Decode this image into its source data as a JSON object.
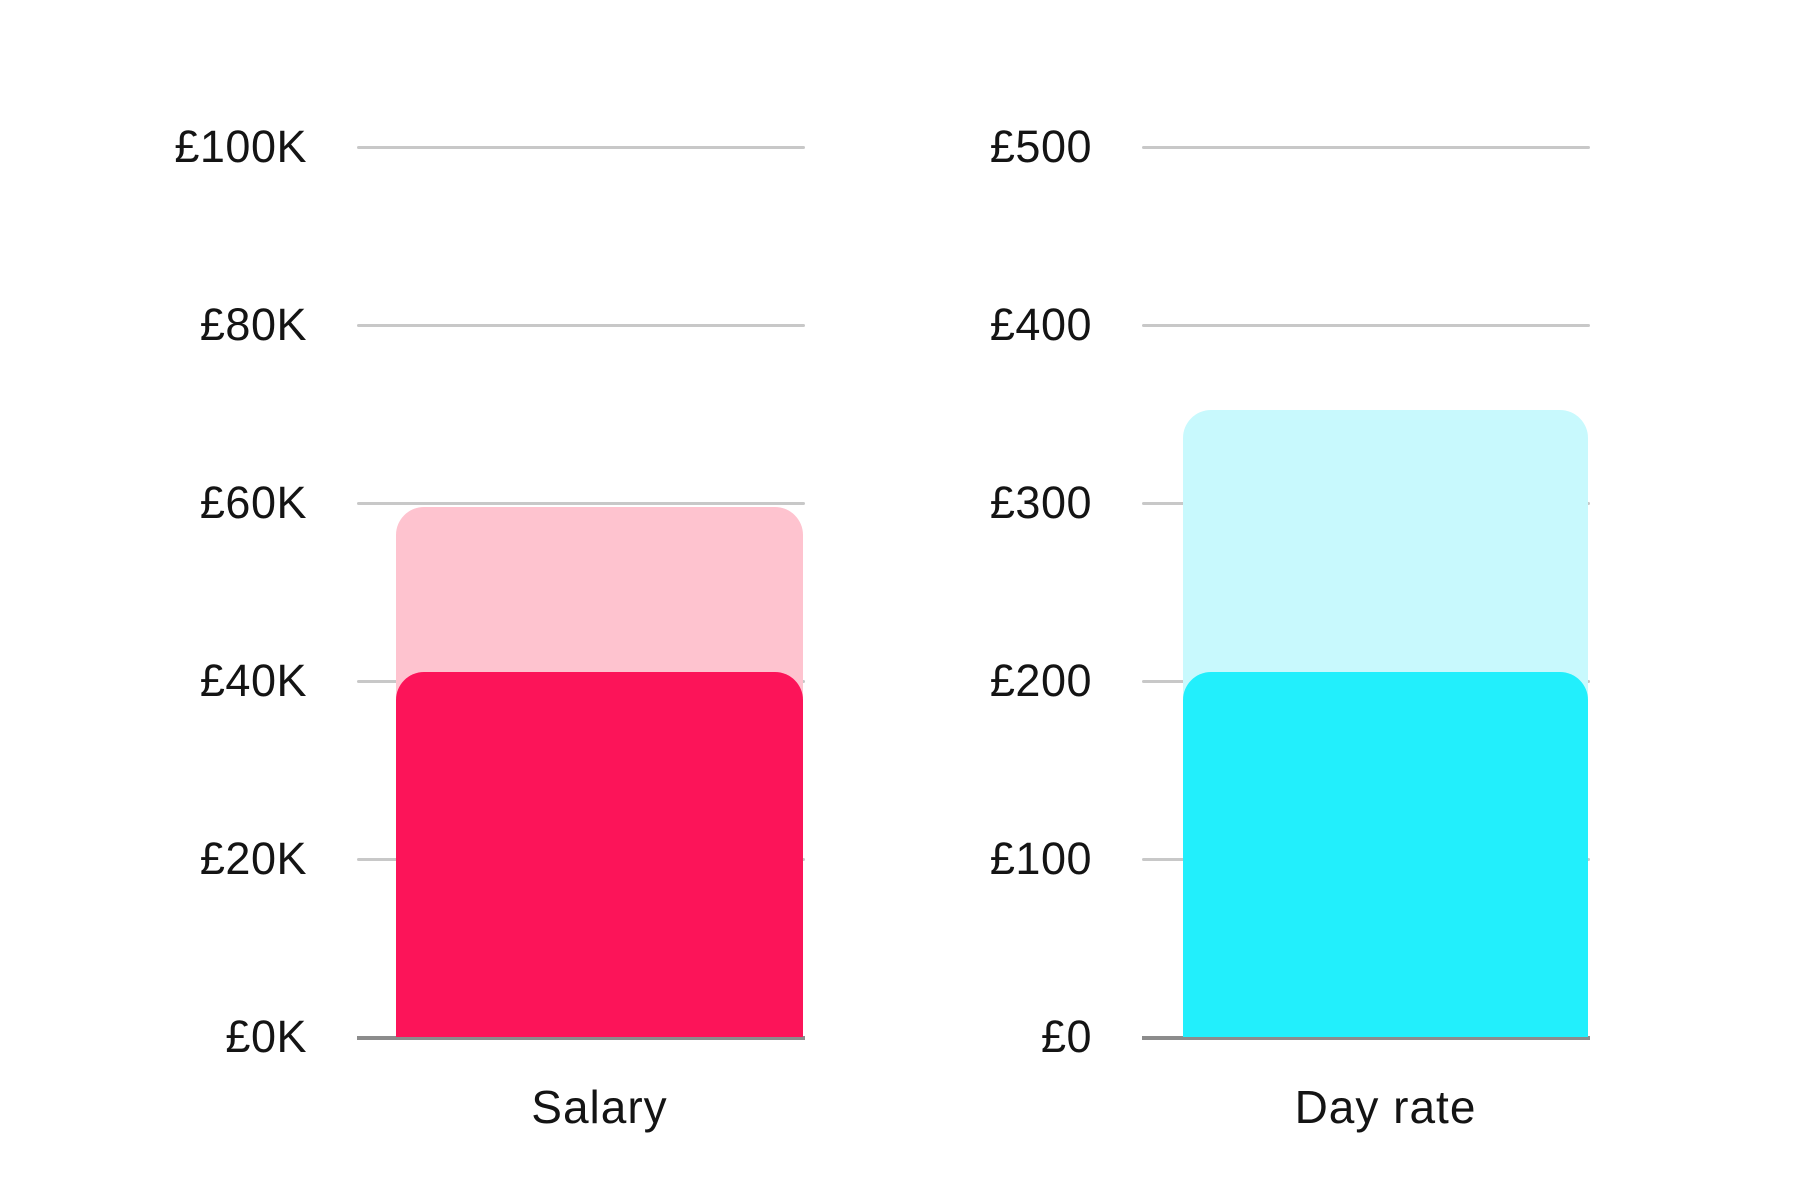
{
  "page": {
    "background": "#FFFFFF"
  },
  "style": {
    "gridline_color": "#C8C8C8",
    "axis_color": "#8C8C8C",
    "text_color": "#141414"
  },
  "chart_data": [
    {
      "type": "bar",
      "title": "",
      "xlabel": "",
      "ylabel": "",
      "categories": [
        "Salary"
      ],
      "category_label": "Salary",
      "ylim": [
        0,
        100000
      ],
      "grid": true,
      "legend": false,
      "series": [
        {
          "name": "salary-range-upper",
          "values": [
            59500
          ],
          "color": "#FEC3CF"
        },
        {
          "name": "salary-current",
          "values": [
            41000
          ],
          "color": "#FC1459"
        }
      ],
      "yticks": [
        {
          "value": 0,
          "label": "£0K"
        },
        {
          "value": 20000,
          "label": "£20K"
        },
        {
          "value": 40000,
          "label": "£40K"
        },
        {
          "value": 60000,
          "label": "£60K"
        },
        {
          "value": 80000,
          "label": "£80K"
        },
        {
          "value": 100000,
          "label": "£100K"
        }
      ]
    },
    {
      "type": "bar",
      "title": "",
      "xlabel": "",
      "ylabel": "",
      "categories": [
        "Day rate"
      ],
      "category_label": "Day rate",
      "ylim": [
        0,
        500
      ],
      "grid": true,
      "legend": false,
      "series": [
        {
          "name": "dayrate-range-upper",
          "values": [
            352
          ],
          "color": "#C8F9FD"
        },
        {
          "name": "dayrate-current",
          "values": [
            205
          ],
          "color": "#22EFFC"
        }
      ],
      "yticks": [
        {
          "value": 0,
          "label": "£0"
        },
        {
          "value": 100,
          "label": "£100"
        },
        {
          "value": 200,
          "label": "£200"
        },
        {
          "value": 300,
          "label": "£300"
        },
        {
          "value": 400,
          "label": "£400"
        },
        {
          "value": 500,
          "label": "£500"
        }
      ]
    }
  ]
}
